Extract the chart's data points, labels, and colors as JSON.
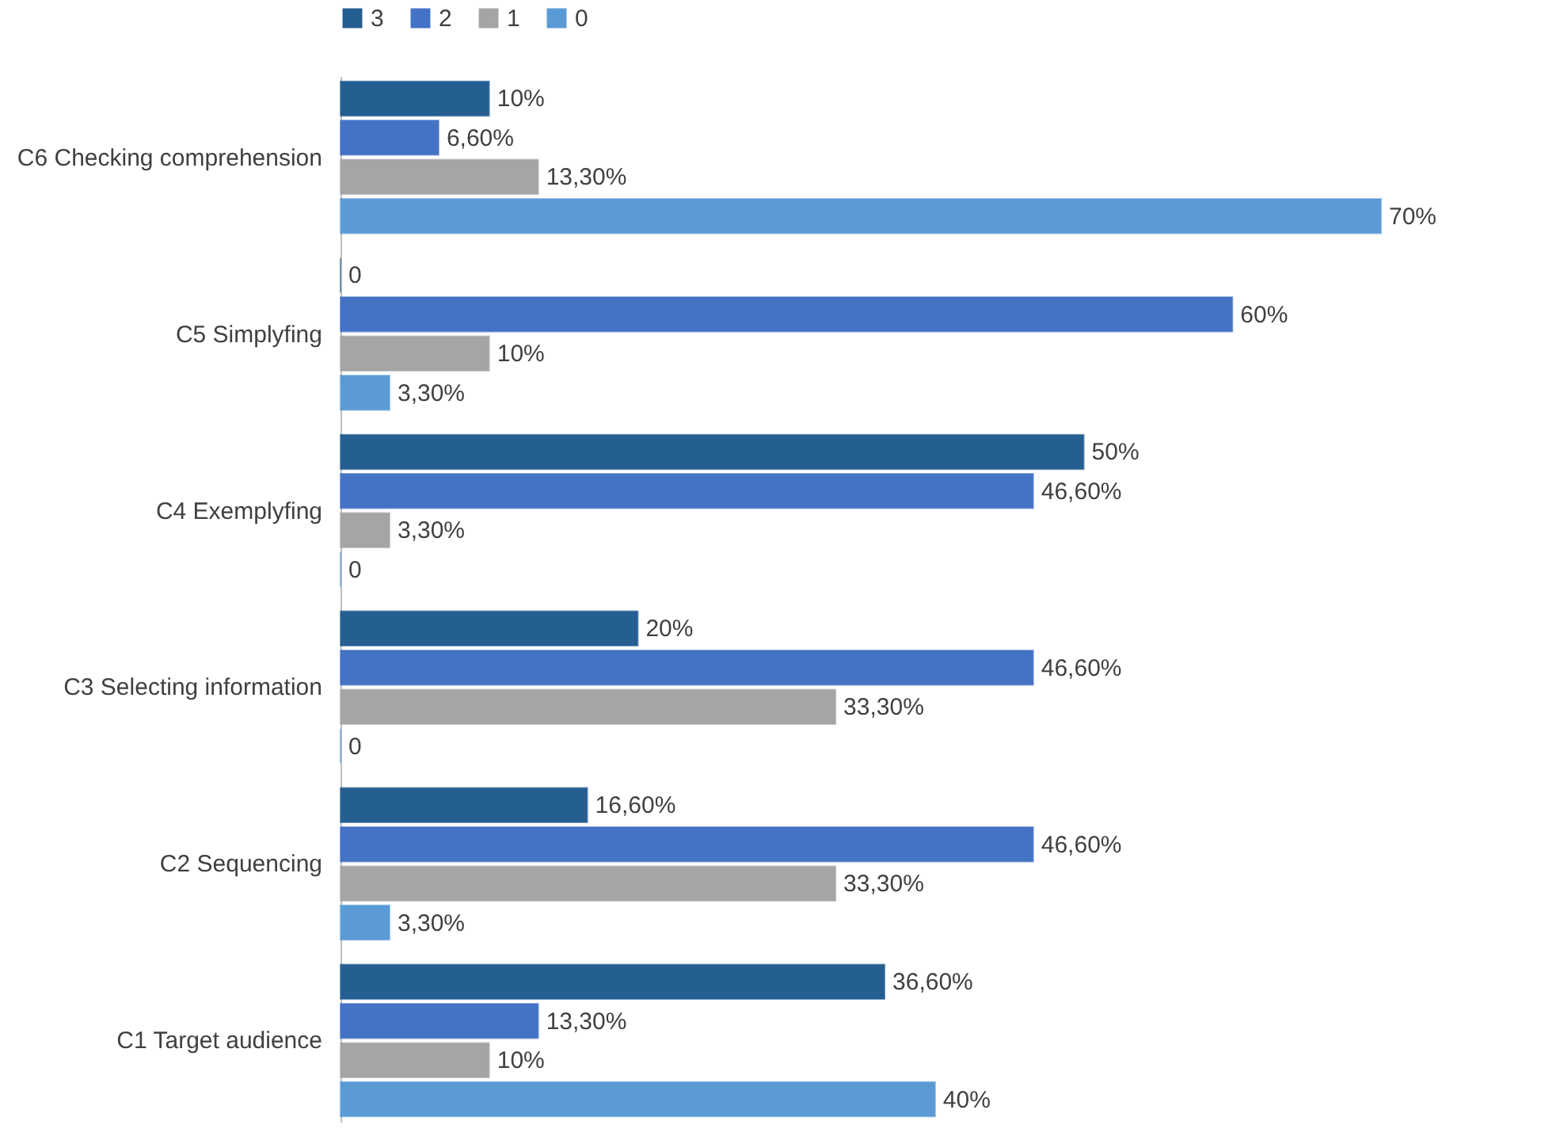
{
  "chart_data": {
    "type": "bar",
    "orientation": "horizontal",
    "legend": "top",
    "categories": [
      "C6 Checking comprehension",
      "C5 Simplyfing",
      "C4 Exemplyfing",
      "C3 Selecting information",
      "C2 Sequencing",
      "C1 Target audience"
    ],
    "series": [
      {
        "name": "3",
        "color": "#255e91",
        "values": [
          10,
          0,
          50,
          20,
          16.6,
          36.6
        ],
        "value_labels": [
          "10%",
          "0",
          "50%",
          "20%",
          "16,60%",
          "36,60%"
        ]
      },
      {
        "name": "2",
        "color": "#4472c4",
        "values": [
          6.6,
          60,
          46.6,
          46.6,
          46.6,
          13.3
        ],
        "value_labels": [
          "6,60%",
          "60%",
          "46,60%",
          "46,60%",
          "46,60%",
          "13,30%"
        ]
      },
      {
        "name": "1",
        "color": "#a5a5a5",
        "values": [
          13.3,
          10,
          3.3,
          33.3,
          33.3,
          10
        ],
        "value_labels": [
          "13,30%",
          "10%",
          "3,30%",
          "33,30%",
          "33,30%",
          "10%"
        ]
      },
      {
        "name": "0",
        "color": "#5b9bd5",
        "values": [
          70,
          3.3,
          0,
          0,
          3.3,
          40
        ],
        "value_labels": [
          "70%",
          "3,30%",
          "0",
          "0",
          "3,30%",
          "40%"
        ]
      }
    ]
  }
}
